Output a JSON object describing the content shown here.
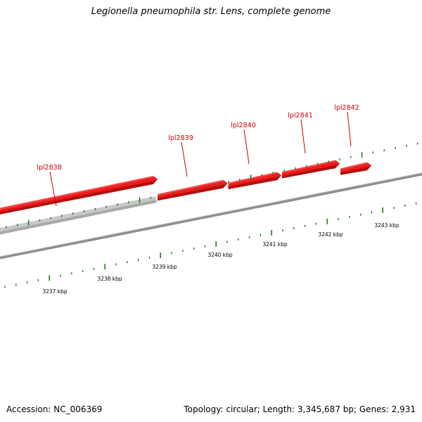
{
  "title": "Legionella pneumophila str. Lens, complete genome",
  "footer": {
    "accession": "Accession: NC_006369",
    "topology": "Topology: circular; Length: 3,345,687 bp; Genes: 2,931"
  },
  "colors": {
    "gene": "#ee1c1c",
    "gene_label": "#cc0000",
    "ghost_gene": "#c8c8c8",
    "backbone": "#8c8c8c",
    "tick": "#1e7a1e"
  },
  "genes": [
    {
      "locus": "lpl2838"
    },
    {
      "locus": "lpl2839"
    },
    {
      "locus": "lpl2840"
    },
    {
      "locus": "lpl2841"
    },
    {
      "locus": "lpl2842"
    }
  ],
  "scale_labels": [
    "3237 kbp",
    "3238 kbp",
    "3239 kbp",
    "3240 kbp",
    "3241 kbp",
    "3242 kbp",
    "3243 kbp"
  ]
}
